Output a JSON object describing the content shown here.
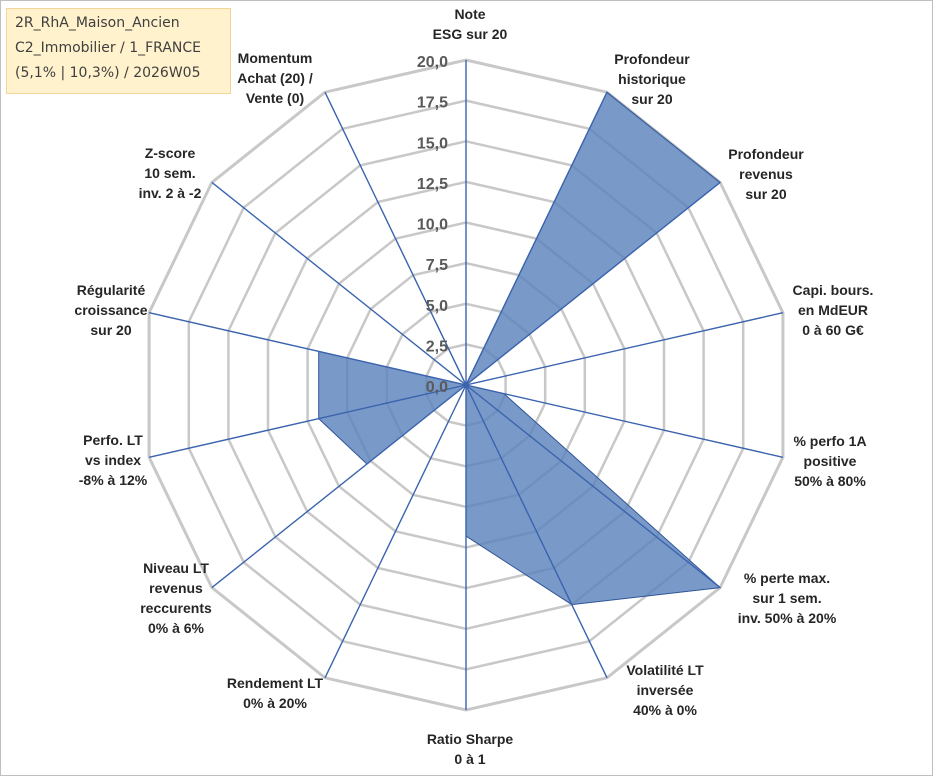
{
  "info": {
    "line1": "2R_RhA_Maison_Ancien",
    "line2": "C2_Immobilier / 1_FRANCE",
    "line3": "(5,1% | 10,3%) / 2026W05"
  },
  "chart_data": {
    "type": "radar",
    "title": "",
    "rlim": [
      0,
      20
    ],
    "ticks": [
      "0,0",
      "2,5",
      "5,0",
      "7,5",
      "10,0",
      "12,5",
      "15,0",
      "17,5",
      "20,0"
    ],
    "tick_values": [
      0,
      2.5,
      5,
      7.5,
      10,
      12.5,
      15,
      17.5,
      20
    ],
    "grid": true,
    "series_color": "#5b84bd",
    "categories": [
      {
        "label": [
          "Note",
          "ESG sur 20"
        ],
        "value": 0
      },
      {
        "label": [
          "Profondeur",
          "historique",
          "sur 20"
        ],
        "value": 20
      },
      {
        "label": [
          "Profondeur",
          "revenus",
          "sur 20"
        ],
        "value": 20
      },
      {
        "label": [
          "Capi. bours.",
          "en MdEUR",
          "0 à 60 G€"
        ],
        "value": 0
      },
      {
        "label": [
          "% perfo 1A",
          "positive",
          "50% à 80%"
        ],
        "value": 2.4
      },
      {
        "label": [
          "% perte max.",
          "sur 1 sem.",
          "inv. 50% à 20%"
        ],
        "value": 20
      },
      {
        "label": [
          "Volatilité LT",
          "inversée",
          "40% à 0%"
        ],
        "value": 15
      },
      {
        "label": [
          "Ratio Sharpe",
          "0 à 1"
        ],
        "value": 9.3
      },
      {
        "label": [
          "Rendement LT",
          "0% à 20%"
        ],
        "value": 0
      },
      {
        "label": [
          "Niveau LT",
          "revenus",
          "reccurents",
          "0% à 6%"
        ],
        "value": 7.8
      },
      {
        "label": [
          "Perfo. LT",
          "vs index",
          "-8% à 12%"
        ],
        "value": 9.3
      },
      {
        "label": [
          "Régularité",
          "croissance",
          "sur 20"
        ],
        "value": 9.3
      },
      {
        "label": [
          "Z-score",
          "10 sem.",
          "inv. 2 à -2"
        ],
        "value": 0
      },
      {
        "label": [
          "Momentum",
          "Achat (20) /",
          "Vente (0)"
        ],
        "value": 4.2
      }
    ]
  }
}
